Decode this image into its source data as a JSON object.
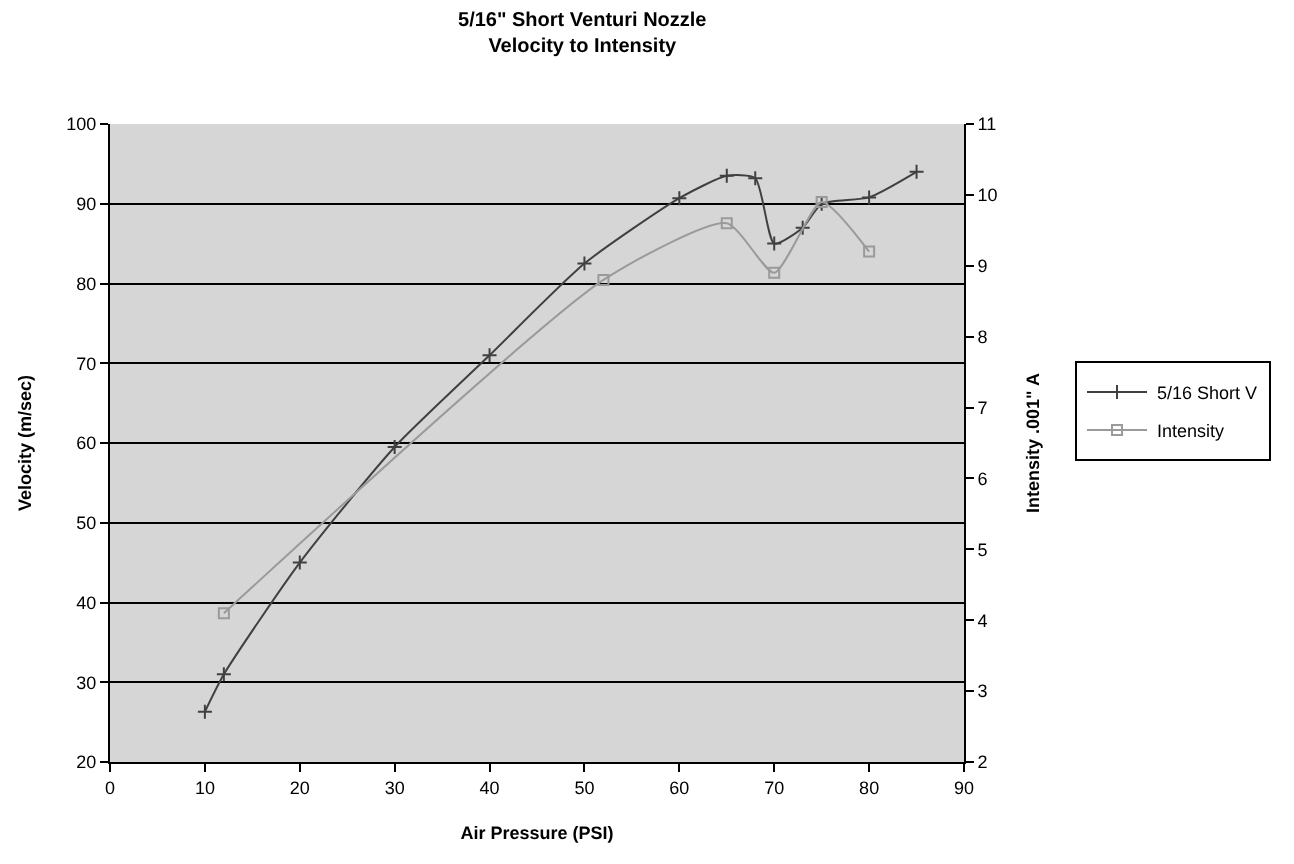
{
  "chart_data": {
    "type": "line",
    "title": "5/16\" Short Venturi Nozzle",
    "subtitle": "Velocity to Intensity",
    "xlabel": "Air Pressure (PSI)",
    "ylabel": "Velocity (m/sec)",
    "y2label": "Intensity .001\" A",
    "series": [
      {
        "name": "5/16 Short V",
        "color": "#404040",
        "marker": "cross",
        "x": [
          10,
          12,
          20,
          30,
          40,
          50,
          60,
          65,
          68,
          70,
          73,
          75,
          80,
          85
        ],
        "values": [
          26.3,
          31,
          45,
          59.5,
          71,
          82.5,
          90.7,
          93.5,
          93.2,
          85,
          87,
          90,
          90.8,
          94
        ]
      },
      {
        "name": "Intensity",
        "color": "#9a9a9a",
        "marker": "square",
        "axis": "y2",
        "x": [
          12,
          52,
          65,
          70,
          75,
          80
        ],
        "values": [
          4.1,
          8.8,
          9.6,
          8.9,
          9.9,
          9.2
        ]
      }
    ],
    "xlim": [
      0,
      90
    ],
    "xticks": [
      0,
      10,
      20,
      30,
      40,
      50,
      60,
      70,
      80,
      90
    ],
    "ylim": [
      20,
      100
    ],
    "yticks": [
      20,
      30,
      40,
      50,
      60,
      70,
      80,
      90,
      100
    ],
    "y2lim": [
      2,
      11
    ],
    "y2ticks": [
      2,
      3,
      4,
      5,
      6,
      7,
      8,
      9,
      10,
      11
    ],
    "grid": "y",
    "legend": "right",
    "line_style": "solid"
  }
}
